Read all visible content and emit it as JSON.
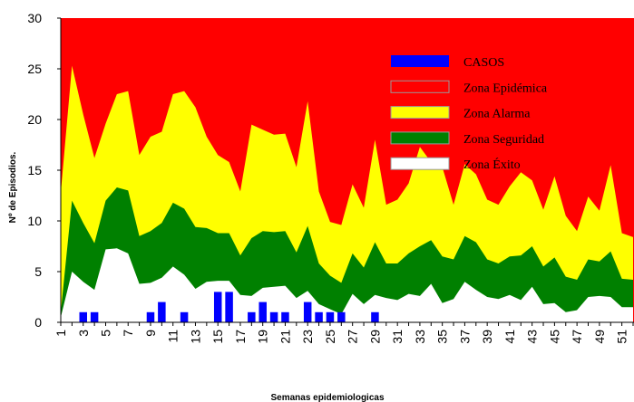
{
  "chart_data": {
    "type": "area",
    "xlabel": "Semanas epidemiologicas",
    "ylabel": "Nº de Episodios.",
    "ylim": [
      0,
      30
    ],
    "yticks": [
      0,
      5,
      10,
      15,
      20,
      25,
      30
    ],
    "weeks": [
      1,
      2,
      3,
      4,
      5,
      6,
      7,
      8,
      9,
      10,
      11,
      12,
      13,
      14,
      15,
      16,
      17,
      18,
      19,
      20,
      21,
      22,
      23,
      24,
      25,
      26,
      27,
      28,
      29,
      30,
      31,
      32,
      33,
      34,
      35,
      36,
      37,
      38,
      39,
      40,
      41,
      42,
      43,
      44,
      45,
      46,
      47,
      48,
      49,
      50,
      51,
      52
    ],
    "xtick_labels": [
      "1",
      "3",
      "5",
      "7",
      "9",
      "11",
      "13",
      "15",
      "17",
      "19",
      "21",
      "23",
      "25",
      "27",
      "29",
      "31",
      "33",
      "35",
      "37",
      "39",
      "41",
      "43",
      "45",
      "47",
      "49",
      "51"
    ],
    "legend": [
      {
        "name": "CASOS",
        "color": "#0000ff"
      },
      {
        "name": "Zona Epidémica",
        "color": "#ff0000"
      },
      {
        "name": "Zona Alarma",
        "color": "#ffff00"
      },
      {
        "name": "Zona Seguridad",
        "color": "#008000"
      },
      {
        "name": "Zona Éxito",
        "color": "#ffffff"
      }
    ],
    "series": [
      {
        "name": "Zona Éxito",
        "color": "#ffffff",
        "values": [
          0.5,
          5.0,
          4.0,
          3.2,
          7.2,
          7.3,
          6.8,
          3.8,
          3.9,
          4.4,
          5.5,
          4.7,
          3.3,
          4.0,
          4.1,
          4.1,
          2.7,
          2.6,
          3.4,
          3.5,
          3.6,
          2.4,
          3.1,
          1.8,
          1.3,
          0.8,
          2.8,
          1.8,
          2.7,
          2.4,
          2.2,
          2.8,
          2.6,
          3.8,
          1.9,
          2.3,
          4.0,
          3.2,
          2.5,
          2.3,
          2.7,
          2.2,
          3.5,
          1.8,
          1.9,
          1.0,
          1.2,
          2.5,
          2.6,
          2.5,
          1.5,
          1.5
        ]
      },
      {
        "name": "Zona Seguridad",
        "color": "#008000",
        "values": [
          1.0,
          12.0,
          9.8,
          7.8,
          12.0,
          13.3,
          13.0,
          8.5,
          9.0,
          9.8,
          11.8,
          11.2,
          9.4,
          9.3,
          8.8,
          8.8,
          6.6,
          8.3,
          9.0,
          8.9,
          9.0,
          6.9,
          9.5,
          5.8,
          4.6,
          3.9,
          6.8,
          5.4,
          7.9,
          5.8,
          5.8,
          6.8,
          7.5,
          8.1,
          6.5,
          6.2,
          8.5,
          7.9,
          6.2,
          5.8,
          6.5,
          6.6,
          7.5,
          5.5,
          6.4,
          4.5,
          4.2,
          6.2,
          6.0,
          7.0,
          4.3,
          4.2
        ]
      },
      {
        "name": "Zona Alarma",
        "color": "#ffff00",
        "values": [
          12.8,
          25.3,
          20.5,
          16.2,
          19.6,
          22.5,
          22.8,
          16.5,
          18.3,
          18.8,
          22.5,
          22.8,
          21.2,
          18.3,
          16.5,
          15.8,
          12.9,
          19.5,
          19.0,
          18.5,
          18.6,
          15.3,
          21.8,
          12.9,
          9.9,
          9.6,
          13.6,
          11.3,
          18.0,
          11.6,
          12.1,
          13.7,
          17.3,
          15.8,
          15.3,
          11.6,
          15.6,
          14.6,
          12.1,
          11.6,
          13.4,
          14.8,
          14.0,
          11.1,
          14.4,
          10.5,
          9.0,
          12.4,
          11.0,
          15.5,
          8.8,
          8.4
        ]
      }
    ],
    "casos": [
      {
        "week": 3,
        "value": 1
      },
      {
        "week": 4,
        "value": 1
      },
      {
        "week": 9,
        "value": 1
      },
      {
        "week": 10,
        "value": 2
      },
      {
        "week": 12,
        "value": 1
      },
      {
        "week": 15,
        "value": 3
      },
      {
        "week": 16,
        "value": 3
      },
      {
        "week": 18,
        "value": 1
      },
      {
        "week": 19,
        "value": 2
      },
      {
        "week": 20,
        "value": 1
      },
      {
        "week": 21,
        "value": 1
      },
      {
        "week": 23,
        "value": 2
      },
      {
        "week": 24,
        "value": 1
      },
      {
        "week": 25,
        "value": 1
      },
      {
        "week": 26,
        "value": 1
      },
      {
        "week": 29,
        "value": 1
      }
    ],
    "grid": false,
    "legend_position": "top-right"
  }
}
